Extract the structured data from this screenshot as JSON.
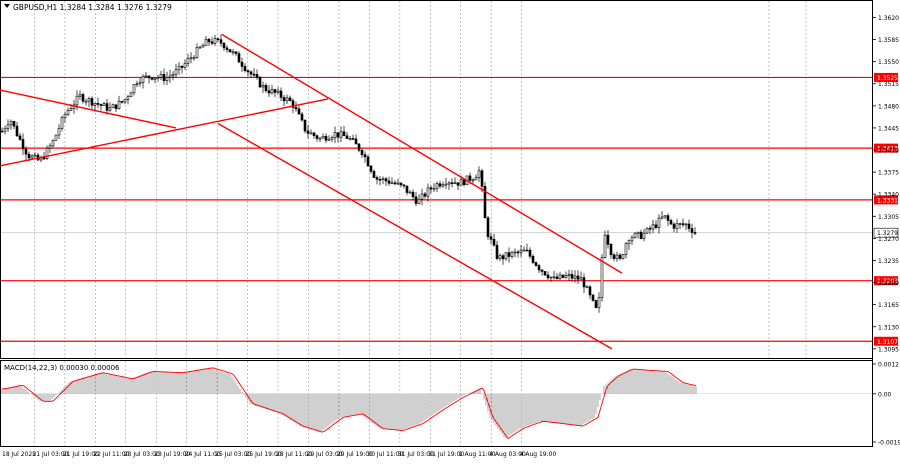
{
  "header": {
    "symbol_line": "GBPUSD,H1  1.3284 1.3284 1.3276 1.3279"
  },
  "macd": {
    "label": "MACD(14,22,3) 0.00030 0.00006"
  },
  "colors": {
    "candle": "#000000",
    "level_line": "#ff0000",
    "trend_line": "#ff0000",
    "grid": "#9a9a9a",
    "price_tag": "#ff0000",
    "current_tag": "#ffffff",
    "macd_hist": "#a0a0a0",
    "macd_signal": "#ff0000"
  },
  "chart_data": {
    "type": "candlestick",
    "symbol": "GBPUSD",
    "timeframe": "H1",
    "ylim": [
      1.309,
      1.3635
    ],
    "y_ticks": [
      "1.3620",
      "1.3585",
      "1.3550",
      "1.3515",
      "1.3480",
      "1.3445",
      "1.3410",
      "1.3375",
      "1.3340",
      "1.3305",
      "1.3270",
      "1.3235",
      "1.3200",
      "1.3165",
      "1.3130",
      "1.3095"
    ],
    "x_ticks": [
      "18 Jul 2025",
      "21 Jul 03:00",
      "21 Jul 19:00",
      "22 Jul 11:00",
      "23 Jul 03:00",
      "23 Jul 19:00",
      "24 Jul 11:00",
      "25 Jul 03:00",
      "25 Jul 19:00",
      "28 Jul 11:00",
      "29 Jul 03:00",
      "29 Jul 19:00",
      "30 Jul 11:00",
      "31 Jul 03:00",
      "31 Jul 19:00",
      "1 Aug 11:00",
      "4 Aug 03:00",
      "4 Aug 19:00"
    ],
    "levels": [
      {
        "label": "1.3525",
        "value": 1.3525
      },
      {
        "label": "1.3413",
        "value": 1.3413
      },
      {
        "label": "1.3331",
        "value": 1.3331
      },
      {
        "label": "1.3203",
        "value": 1.3203
      },
      {
        "label": "1.3107",
        "value": 1.3107
      }
    ],
    "current_price": {
      "label": "1.3279",
      "value": 1.3279
    },
    "trend_lines": [
      {
        "from": [
          0,
          1.3505
        ],
        "to": [
          176,
          1.3445
        ]
      },
      {
        "from": [
          0,
          1.3385
        ],
        "to": [
          328,
          1.3491
        ]
      },
      {
        "from": [
          222,
          1.3593
        ],
        "to": [
          622,
          1.3215
        ]
      },
      {
        "from": [
          218,
          1.3452
        ],
        "to": [
          612,
          1.3095
        ]
      }
    ],
    "price_path": [
      [
        2,
        1.344
      ],
      [
        10,
        1.346
      ],
      [
        18,
        1.3432
      ],
      [
        28,
        1.3402
      ],
      [
        40,
        1.3392
      ],
      [
        52,
        1.342
      ],
      [
        66,
        1.347
      ],
      [
        80,
        1.3495
      ],
      [
        96,
        1.3484
      ],
      [
        110,
        1.3475
      ],
      [
        124,
        1.3488
      ],
      [
        138,
        1.3522
      ],
      [
        152,
        1.3527
      ],
      [
        166,
        1.3524
      ],
      [
        180,
        1.3538
      ],
      [
        194,
        1.3562
      ],
      [
        208,
        1.3583
      ],
      [
        222,
        1.358
      ],
      [
        236,
        1.3558
      ],
      [
        250,
        1.3532
      ],
      [
        264,
        1.3508
      ],
      [
        278,
        1.3498
      ],
      [
        292,
        1.3485
      ],
      [
        306,
        1.344
      ],
      [
        320,
        1.3428
      ],
      [
        334,
        1.3436
      ],
      [
        348,
        1.343
      ],
      [
        362,
        1.3408
      ],
      [
        376,
        1.3365
      ],
      [
        390,
        1.336
      ],
      [
        404,
        1.335
      ],
      [
        418,
        1.3328
      ],
      [
        432,
        1.3352
      ],
      [
        446,
        1.3362
      ],
      [
        460,
        1.3358
      ],
      [
        474,
        1.3368
      ],
      [
        480,
        1.3378
      ],
      [
        486,
        1.3285
      ],
      [
        498,
        1.3238
      ],
      [
        512,
        1.3245
      ],
      [
        526,
        1.325
      ],
      [
        540,
        1.3222
      ],
      [
        554,
        1.3205
      ],
      [
        568,
        1.321
      ],
      [
        582,
        1.3205
      ],
      [
        592,
        1.317
      ],
      [
        598,
        1.315
      ],
      [
        604,
        1.3285
      ],
      [
        612,
        1.3245
      ],
      [
        620,
        1.3235
      ],
      [
        628,
        1.3272
      ],
      [
        642,
        1.3275
      ],
      [
        656,
        1.3292
      ],
      [
        664,
        1.3305
      ],
      [
        672,
        1.329
      ],
      [
        686,
        1.3292
      ],
      [
        696,
        1.3279
      ]
    ],
    "macd_ylim": [
      -0.00194,
      0.0012
    ],
    "macd_ticks": [
      "0.0012",
      "0.00",
      "-0.00194"
    ],
    "macd_path": [
      [
        2,
        0.0002
      ],
      [
        20,
        0.00035
      ],
      [
        40,
        -0.0003
      ],
      [
        50,
        -0.0003
      ],
      [
        70,
        0.0005
      ],
      [
        100,
        0.00085
      ],
      [
        130,
        0.0006
      ],
      [
        150,
        0.0009
      ],
      [
        180,
        0.00085
      ],
      [
        210,
        0.00105
      ],
      [
        230,
        0.0008
      ],
      [
        250,
        -0.0004
      ],
      [
        280,
        -0.0008
      ],
      [
        300,
        -0.0013
      ],
      [
        320,
        -0.00155
      ],
      [
        340,
        -0.00095
      ],
      [
        360,
        -0.0008
      ],
      [
        380,
        -0.0014
      ],
      [
        400,
        -0.00148
      ],
      [
        420,
        -0.0012
      ],
      [
        440,
        -0.00065
      ],
      [
        460,
        -0.00015
      ],
      [
        480,
        0.00025
      ],
      [
        490,
        -0.00095
      ],
      [
        505,
        -0.0018
      ],
      [
        520,
        -0.0014
      ],
      [
        540,
        -0.0011
      ],
      [
        560,
        -0.0012
      ],
      [
        580,
        -0.0013
      ],
      [
        595,
        -0.00095
      ],
      [
        604,
        0.0003
      ],
      [
        615,
        0.0007
      ],
      [
        630,
        0.001
      ],
      [
        645,
        0.00095
      ],
      [
        665,
        0.0009
      ],
      [
        680,
        0.00045
      ],
      [
        696,
        0.0003
      ]
    ]
  }
}
